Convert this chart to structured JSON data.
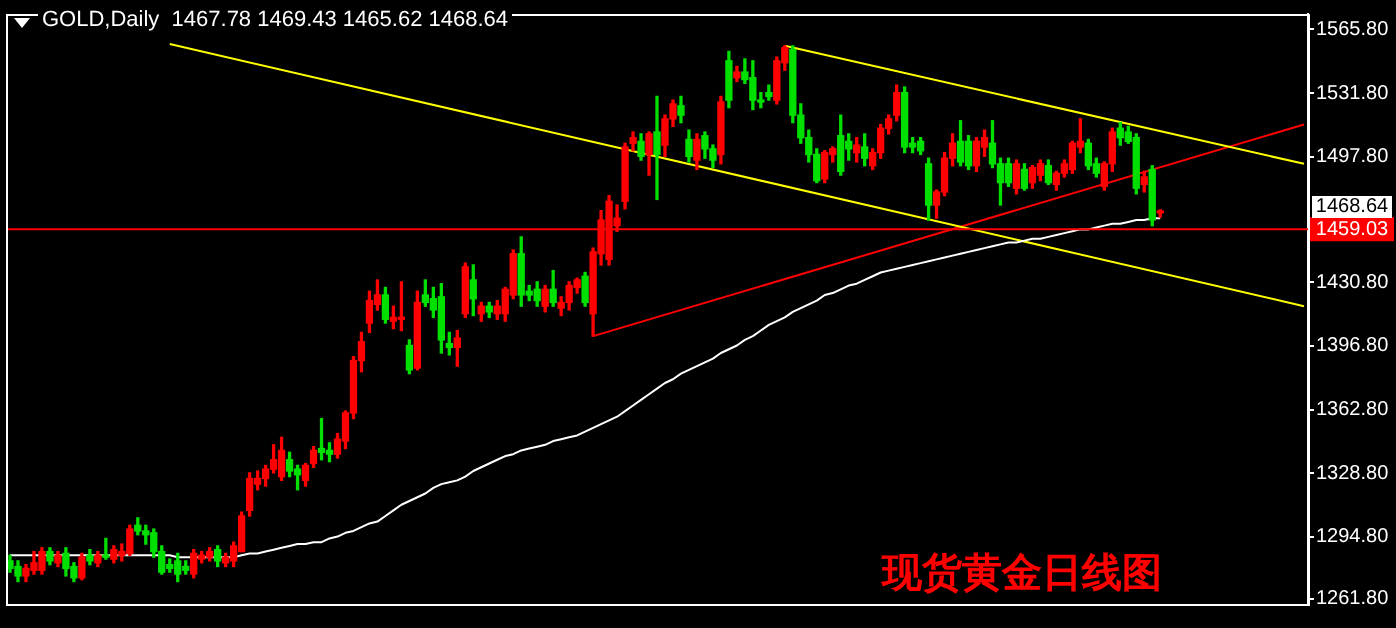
{
  "chart_data": {
    "type": "candlestick",
    "title": "GOLD,Daily  1467.78 1469.43 1465.62 1468.64",
    "categories": [
      null,
      null,
      null,
      null,
      null,
      null,
      null,
      null,
      null,
      null,
      null,
      null,
      null,
      null,
      null,
      null,
      null,
      null,
      null,
      null,
      null,
      null,
      null,
      null,
      null,
      null,
      null,
      null,
      null,
      null,
      null,
      null,
      null,
      null,
      null,
      null,
      null,
      null,
      null,
      null,
      null,
      null,
      null,
      null,
      null,
      null,
      null,
      null,
      null,
      null,
      null,
      null,
      null,
      null,
      null,
      null,
      null,
      null,
      null,
      null,
      null,
      null,
      null,
      null,
      null,
      null,
      null,
      null,
      null,
      null,
      null,
      null,
      null,
      null,
      null,
      null,
      null,
      null,
      null,
      null,
      null,
      null,
      null,
      null,
      null,
      null,
      null,
      null,
      null,
      null,
      null,
      null,
      null,
      null,
      null,
      null,
      null,
      null,
      null,
      null,
      null,
      null,
      null,
      null,
      null,
      null,
      null,
      null,
      null,
      null,
      null,
      null,
      null,
      null,
      null,
      null,
      null,
      null,
      null,
      null,
      null,
      null,
      null,
      null,
      null,
      null,
      null,
      null,
      null,
      null,
      null,
      null,
      null,
      null,
      null,
      null,
      null,
      null,
      null,
      null,
      null,
      null,
      null,
      null,
      null,
      null,
      null,
      null,
      null,
      null,
      null,
      null,
      null,
      null,
      null,
      null,
      null,
      null,
      null,
      null,
      null,
      null,
      null
    ],
    "ohlc": [
      [
        1282,
        1285,
        1276,
        1278
      ],
      [
        1279,
        1282,
        1271,
        1274
      ],
      [
        1274,
        1280,
        1271,
        1278
      ],
      [
        1277,
        1287,
        1275,
        1281
      ],
      [
        1277,
        1289,
        1275,
        1287
      ],
      [
        1287,
        1289,
        1280,
        1282
      ],
      [
        1281,
        1287,
        1279,
        1285
      ],
      [
        1286,
        1289,
        1274,
        1278
      ],
      [
        1279,
        1281,
        1271,
        1273
      ],
      [
        1273,
        1286,
        1272,
        1284
      ],
      [
        1285,
        1288,
        1280,
        1282
      ],
      [
        1281,
        1287,
        1279,
        1285
      ],
      [
        1284,
        1294,
        1283,
        1285
      ],
      [
        1283,
        1290,
        1281,
        1288
      ],
      [
        1285,
        1291,
        1282,
        1287
      ],
      [
        1286,
        1301,
        1285,
        1299
      ],
      [
        1301,
        1305,
        1296,
        1298
      ],
      [
        1298,
        1301,
        1291,
        1296
      ],
      [
        1297,
        1299,
        1284,
        1287
      ],
      [
        1287,
        1290,
        1275,
        1276
      ],
      [
        1280,
        1283,
        1276,
        1278
      ],
      [
        1282,
        1286,
        1271,
        1275
      ],
      [
        1279,
        1282,
        1275,
        1277
      ],
      [
        1275,
        1288,
        1273,
        1286
      ],
      [
        1283,
        1287,
        1281,
        1285
      ],
      [
        1284,
        1289,
        1282,
        1287
      ],
      [
        1288,
        1290,
        1279,
        1282
      ],
      [
        1281,
        1286,
        1279,
        1284
      ],
      [
        1282,
        1292,
        1279,
        1290
      ],
      [
        1287,
        1308,
        1287,
        1306
      ],
      [
        1309,
        1329,
        1306,
        1326
      ],
      [
        1323,
        1330,
        1320,
        1326
      ],
      [
        1326,
        1333,
        1322,
        1331
      ],
      [
        1331,
        1344,
        1329,
        1336
      ],
      [
        1327,
        1348,
        1325,
        1341
      ],
      [
        1336,
        1340,
        1327,
        1330
      ],
      [
        1331,
        1333,
        1320,
        1328
      ],
      [
        1325,
        1334,
        1322,
        1333
      ],
      [
        1334,
        1343,
        1332,
        1341
      ],
      [
        1342,
        1358,
        1336,
        1340
      ],
      [
        1341,
        1345,
        1335,
        1339
      ],
      [
        1339,
        1350,
        1337,
        1347
      ],
      [
        1346,
        1362,
        1342,
        1361
      ],
      [
        1361,
        1391,
        1358,
        1389
      ],
      [
        1389,
        1404,
        1383,
        1399
      ],
      [
        1409,
        1426,
        1404,
        1421
      ],
      [
        1419,
        1432,
        1416,
        1424
      ],
      [
        1424,
        1428,
        1409,
        1411
      ],
      [
        1410,
        1418,
        1406,
        1412
      ],
      [
        1411,
        1431,
        1405,
        1412
      ],
      [
        1397,
        1400,
        1382,
        1384
      ],
      [
        1385,
        1426,
        1384,
        1420
      ],
      [
        1424,
        1432,
        1418,
        1420
      ],
      [
        1422,
        1428,
        1412,
        1416
      ],
      [
        1423,
        1430,
        1393,
        1400
      ],
      [
        1398,
        1404,
        1392,
        1396
      ],
      [
        1396,
        1405,
        1386,
        1401
      ],
      [
        1414,
        1441,
        1412,
        1439
      ],
      [
        1432,
        1440,
        1413,
        1422
      ],
      [
        1414,
        1420,
        1410,
        1418
      ],
      [
        1418,
        1420,
        1412,
        1415
      ],
      [
        1414,
        1421,
        1411,
        1418
      ],
      [
        1414,
        1428,
        1410,
        1427
      ],
      [
        1424,
        1448,
        1422,
        1446
      ],
      [
        1446,
        1455,
        1418,
        1424
      ],
      [
        1426,
        1429,
        1421,
        1424
      ],
      [
        1427,
        1431,
        1418,
        1421
      ],
      [
        1418,
        1429,
        1415,
        1427
      ],
      [
        1427,
        1437,
        1418,
        1420
      ],
      [
        1417,
        1423,
        1413,
        1420
      ],
      [
        1420,
        1431,
        1416,
        1429
      ],
      [
        1428,
        1433,
        1425,
        1432
      ],
      [
        1434,
        1436,
        1418,
        1420
      ],
      [
        1414,
        1449,
        1402,
        1447
      ],
      [
        1446,
        1469,
        1440,
        1464
      ],
      [
        1443,
        1477,
        1440,
        1474
      ],
      [
        1461,
        1472,
        1458,
        1465
      ],
      [
        1474,
        1505,
        1470,
        1503
      ],
      [
        1505,
        1511,
        1501,
        1508
      ],
      [
        1506,
        1510,
        1496,
        1498
      ],
      [
        1499,
        1511,
        1488,
        1510
      ],
      [
        1511,
        1530,
        1475,
        1499
      ],
      [
        1504,
        1520,
        1498,
        1518
      ],
      [
        1518,
        1528,
        1514,
        1526
      ],
      [
        1525,
        1530,
        1516,
        1520
      ],
      [
        1507,
        1512,
        1495,
        1498
      ],
      [
        1496,
        1510,
        1491,
        1507
      ],
      [
        1509,
        1511,
        1497,
        1502
      ],
      [
        1502,
        1504,
        1492,
        1496
      ],
      [
        1499,
        1530,
        1494,
        1527
      ],
      [
        1549,
        1554,
        1524,
        1528
      ],
      [
        1540,
        1546,
        1538,
        1543
      ],
      [
        1543,
        1550,
        1537,
        1539
      ],
      [
        1540,
        1549,
        1523,
        1528
      ],
      [
        1528,
        1532,
        1524,
        1527
      ],
      [
        1532,
        1536,
        1528,
        1530
      ],
      [
        1528,
        1551,
        1526,
        1549
      ],
      [
        1548,
        1557,
        1544,
        1556
      ],
      [
        1555,
        1557,
        1516,
        1520
      ],
      [
        1520,
        1526,
        1505,
        1508
      ],
      [
        1508,
        1512,
        1495,
        1499
      ],
      [
        1499,
        1502,
        1484,
        1485
      ],
      [
        1486,
        1501,
        1484,
        1500
      ],
      [
        1499,
        1503,
        1495,
        1502
      ],
      [
        1509,
        1520,
        1488,
        1490
      ],
      [
        1506,
        1510,
        1496,
        1502
      ],
      [
        1500,
        1508,
        1495,
        1504
      ],
      [
        1503,
        1510,
        1493,
        1497
      ],
      [
        1493,
        1502,
        1491,
        1500
      ],
      [
        1500,
        1515,
        1497,
        1513
      ],
      [
        1513,
        1520,
        1510,
        1518
      ],
      [
        1520,
        1536,
        1517,
        1532
      ],
      [
        1532,
        1535,
        1500,
        1503
      ],
      [
        1505,
        1508,
        1500,
        1503
      ],
      [
        1506,
        1508,
        1499,
        1501
      ],
      [
        1494,
        1497,
        1464,
        1472
      ],
      [
        1472,
        1480,
        1465,
        1479
      ],
      [
        1479,
        1500,
        1477,
        1497
      ],
      [
        1497,
        1510,
        1493,
        1505
      ],
      [
        1506,
        1517,
        1493,
        1495
      ],
      [
        1506,
        1509,
        1491,
        1493
      ],
      [
        1493,
        1508,
        1490,
        1506
      ],
      [
        1503,
        1512,
        1498,
        1508
      ],
      [
        1505,
        1517,
        1492,
        1494
      ],
      [
        1494,
        1497,
        1472,
        1484
      ],
      [
        1494,
        1497,
        1482,
        1484
      ],
      [
        1481,
        1496,
        1478,
        1494
      ],
      [
        1491,
        1494,
        1480,
        1481
      ],
      [
        1484,
        1493,
        1481,
        1492
      ],
      [
        1488,
        1496,
        1485,
        1494
      ],
      [
        1493,
        1496,
        1483,
        1484
      ],
      [
        1483,
        1490,
        1480,
        1489
      ],
      [
        1489,
        1496,
        1487,
        1494
      ],
      [
        1491,
        1506,
        1489,
        1505
      ],
      [
        1503,
        1518,
        1500,
        1506
      ],
      [
        1505,
        1507,
        1491,
        1493
      ],
      [
        1494,
        1497,
        1487,
        1489
      ],
      [
        1482,
        1495,
        1480,
        1494
      ],
      [
        1494,
        1513,
        1490,
        1511
      ],
      [
        1513,
        1516,
        1504,
        1508
      ],
      [
        1511,
        1514,
        1505,
        1506
      ],
      [
        1508,
        1510,
        1478,
        1481
      ],
      [
        1483,
        1490,
        1479,
        1487
      ],
      [
        1491,
        1493,
        1461,
        1464
      ],
      [
        1467.78,
        1469.43,
        1465.62,
        1468.64
      ],
      null,
      null,
      null,
      null,
      null,
      null,
      null,
      null,
      null,
      null,
      null,
      null,
      null,
      null,
      null,
      null,
      null,
      null
    ],
    "colors": [
      "#00e000",
      "#00e000",
      "#ff0000",
      "#ff0000",
      "#ff0000",
      "#00e000",
      "#ff0000",
      "#00e000",
      "#00e000",
      "#ff0000",
      "#00e000",
      "#ff0000",
      "#00e000",
      "#ff0000",
      "#ff0000",
      "#ff0000",
      "#00e000",
      "#00e000",
      "#00e000",
      "#00e000",
      "#00e000",
      "#00e000",
      "#00e000",
      "#ff0000",
      "#ff0000",
      "#ff0000",
      "#00e000",
      "#ff0000",
      "#ff0000",
      "#ff0000",
      "#ff0000",
      "#ff0000",
      "#ff0000",
      "#ff0000",
      "#ff0000",
      "#00e000",
      "#00e000",
      "#ff0000",
      "#ff0000",
      "#00e000",
      "#00e000",
      "#ff0000",
      "#ff0000",
      "#ff0000",
      "#ff0000",
      "#ff0000",
      "#ff0000",
      "#00e000",
      "#ff0000",
      "#ff0000",
      "#00e000",
      "#ff0000",
      "#00e000",
      "#00e000",
      "#00e000",
      "#00e000",
      "#ff0000",
      "#ff0000",
      "#00e000",
      "#ff0000",
      "#00e000",
      "#ff0000",
      "#ff0000",
      "#ff0000",
      "#00e000",
      "#00e000",
      "#00e000",
      "#ff0000",
      "#00e000",
      "#ff0000",
      "#ff0000",
      "#ff0000",
      "#00e000",
      "#ff0000",
      "#ff0000",
      "#ff0000",
      "#ff0000",
      "#ff0000",
      "#ff0000",
      "#00e000",
      "#ff0000",
      "#00e000",
      "#ff0000",
      "#ff0000",
      "#00e000",
      "#00e000",
      "#ff0000",
      "#00e000",
      "#00e000",
      "#ff0000",
      "#00e000",
      "#ff0000",
      "#00e000",
      "#00e000",
      "#00e000",
      "#00e000",
      "#ff0000",
      "#ff0000",
      "#00e000",
      "#00e000",
      "#00e000",
      "#00e000",
      "#ff0000",
      "#ff0000",
      "#00e000",
      "#00e000",
      "#ff0000",
      "#00e000",
      "#ff0000",
      "#ff0000",
      "#ff0000",
      "#ff0000",
      "#00e000",
      "#00e000",
      "#00e000",
      "#00e000",
      "#ff0000",
      "#ff0000",
      "#ff0000",
      "#00e000",
      "#00e000",
      "#ff0000",
      "#ff0000",
      "#00e000",
      "#00e000",
      "#00e000",
      "#ff0000",
      "#00e000",
      "#ff0000",
      "#ff0000",
      "#00e000",
      "#ff0000",
      "#ff0000",
      "#ff0000",
      "#ff0000",
      "#00e000",
      "#00e000",
      "#ff0000",
      "#ff0000",
      "#00e000",
      "#00e000",
      "#00e000",
      "#ff0000",
      "#00e000",
      "#ff0000",
      null,
      null,
      null,
      null,
      null,
      null,
      null,
      null,
      null,
      null,
      null,
      null,
      null,
      null,
      null,
      null,
      null,
      null
    ],
    "series": [
      {
        "type": "line",
        "color": "#ffffff",
        "values": [
          1285,
          1285,
          1285,
          1285,
          1285,
          1285,
          1285,
          1285,
          1285,
          1285,
          1285,
          1285,
          1285,
          1285,
          1285,
          1285,
          1285,
          1285,
          1285,
          1285,
          1285,
          1284,
          1284,
          1284,
          1284,
          1284,
          1284,
          1284,
          1284,
          1285,
          1286,
          1286,
          1287,
          1288,
          1289,
          1290,
          1291,
          1291,
          1292,
          1292,
          1294,
          1295,
          1297,
          1298,
          1300,
          1302,
          1303,
          1306,
          1309,
          1312,
          1314,
          1316,
          1318,
          1321,
          1323,
          1324,
          1325,
          1327,
          1330,
          1332,
          1334,
          1336,
          1338,
          1339,
          1341,
          1342,
          1343,
          1344,
          1346,
          1347,
          1348,
          1349,
          1351,
          1353,
          1355,
          1357,
          1359,
          1362,
          1365,
          1368,
          1371,
          1374,
          1377,
          1379,
          1382,
          1384,
          1386,
          1388,
          1390,
          1393,
          1395,
          1397,
          1400,
          1402,
          1405,
          1408,
          1410,
          1412,
          1415,
          1417,
          1419,
          1421,
          1424,
          1425,
          1427,
          1429,
          1430,
          1432,
          1434,
          1436,
          1437,
          1438,
          1439,
          1440,
          1441,
          1442,
          1443,
          1444,
          1445,
          1446,
          1447,
          1448,
          1449,
          1450,
          1451,
          1452,
          1452,
          1453,
          1454,
          1454,
          1455,
          1456,
          1457,
          1458,
          1459,
          1459,
          1460,
          1461,
          1462,
          1462,
          1463,
          1464,
          1464,
          1465,
          1465,
          null,
          null,
          null,
          null,
          null,
          null,
          null,
          null,
          null,
          null,
          null,
          null,
          null,
          null,
          null,
          null,
          null,
          null
        ]
      },
      {
        "type": "line",
        "color": "#ffff00",
        "values": [
          null,
          null,
          null,
          null,
          null,
          null,
          null,
          null,
          null,
          null,
          null,
          null,
          null,
          null,
          null,
          null,
          null,
          null,
          null,
          null,
          null,
          null,
          null,
          null,
          null,
          null,
          null,
          null,
          null,
          null,
          null,
          null,
          null,
          null,
          null,
          null,
          null,
          null,
          null,
          null,
          null,
          null,
          null,
          null,
          null,
          null,
          null,
          null,
          null,
          null,
          null,
          null,
          null,
          null,
          null,
          null,
          null,
          null,
          null,
          null,
          null,
          null,
          null,
          null,
          null,
          null,
          null,
          null,
          null,
          null,
          null,
          null,
          null,
          null,
          null,
          null,
          null,
          null,
          null,
          null,
          null,
          null,
          null,
          null,
          null,
          null,
          null,
          null,
          null,
          null,
          null,
          null,
          null,
          null,
          null,
          null,
          null,
          1557,
          null,
          null,
          null,
          null,
          null,
          null,
          null,
          null,
          null,
          null,
          null,
          null,
          null,
          null,
          null,
          null,
          null,
          null,
          null,
          null,
          null,
          null,
          null,
          null,
          null,
          null,
          null,
          null,
          null,
          null,
          null,
          null,
          null,
          null,
          null,
          null,
          null,
          null,
          null,
          null,
          null,
          null,
          null,
          null,
          null,
          null,
          null,
          null,
          null,
          null,
          null,
          null,
          null,
          null,
          null,
          null,
          null,
          null,
          null,
          null,
          null,
          null,
          null,
          null,
          1494
        ]
      },
      {
        "type": "line",
        "color": "#ffff00",
        "values": [
          null,
          null,
          null,
          null,
          null,
          null,
          null,
          null,
          null,
          null,
          null,
          null,
          null,
          null,
          null,
          null,
          null,
          null,
          null,
          null,
          1558,
          null,
          null,
          null,
          null,
          null,
          null,
          null,
          null,
          null,
          null,
          null,
          null,
          null,
          null,
          null,
          null,
          null,
          null,
          null,
          null,
          null,
          null,
          null,
          null,
          null,
          null,
          null,
          null,
          null,
          null,
          null,
          null,
          null,
          null,
          null,
          null,
          null,
          null,
          null,
          null,
          null,
          null,
          null,
          null,
          null,
          null,
          null,
          null,
          null,
          null,
          null,
          null,
          null,
          null,
          null,
          null,
          null,
          null,
          null,
          null,
          null,
          null,
          null,
          null,
          null,
          null,
          null,
          null,
          null,
          null,
          null,
          null,
          null,
          null,
          null,
          null,
          null,
          null,
          null,
          null,
          null,
          null,
          null,
          null,
          null,
          null,
          null,
          null,
          null,
          null,
          null,
          null,
          null,
          null,
          null,
          null,
          null,
          null,
          null,
          null,
          null,
          null,
          null,
          null,
          null,
          null,
          null,
          null,
          null,
          null,
          null,
          null,
          null,
          null,
          null,
          null,
          null,
          null,
          null,
          null,
          null,
          null,
          null,
          null,
          null,
          null,
          null,
          null,
          null,
          null,
          null,
          null,
          null,
          null,
          null,
          null,
          null,
          null,
          null,
          null,
          null,
          1418
        ]
      },
      {
        "type": "line",
        "color": "#ff0000",
        "values": [
          null,
          null,
          null,
          null,
          null,
          null,
          null,
          null,
          null,
          null,
          null,
          null,
          null,
          null,
          null,
          null,
          null,
          null,
          null,
          null,
          null,
          null,
          null,
          null,
          null,
          null,
          null,
          null,
          null,
          null,
          null,
          null,
          null,
          null,
          null,
          null,
          null,
          null,
          null,
          null,
          null,
          null,
          null,
          null,
          null,
          null,
          null,
          null,
          null,
          null,
          null,
          null,
          null,
          null,
          null,
          null,
          null,
          null,
          null,
          null,
          null,
          null,
          null,
          null,
          null,
          null,
          null,
          null,
          null,
          null,
          null,
          null,
          null,
          1402,
          null,
          null,
          null,
          null,
          null,
          null,
          null,
          null,
          null,
          null,
          null,
          null,
          null,
          null,
          null,
          null,
          null,
          null,
          null,
          null,
          null,
          null,
          null,
          null,
          null,
          null,
          null,
          null,
          null,
          null,
          null,
          null,
          null,
          null,
          null,
          null,
          null,
          null,
          null,
          null,
          null,
          null,
          null,
          null,
          null,
          null,
          null,
          null,
          null,
          null,
          null,
          null,
          null,
          null,
          null,
          null,
          null,
          null,
          null,
          null,
          null,
          null,
          null,
          null,
          null,
          null,
          null,
          null,
          null,
          null,
          null,
          null,
          null,
          null,
          null,
          null,
          null,
          null,
          null,
          null,
          null,
          null,
          null,
          null,
          null,
          null,
          null,
          null,
          1515
        ]
      }
    ],
    "ylim": [
      1259,
      1574
    ],
    "yticks": [
      {
        "value": 1565.8,
        "label": "1565.80"
      },
      {
        "value": 1531.8,
        "label": "1531.80"
      },
      {
        "value": 1497.8,
        "label": "1497.80"
      },
      {
        "value": 1430.8,
        "label": "1430.80"
      },
      {
        "value": 1396.8,
        "label": "1396.80"
      },
      {
        "value": 1362.8,
        "label": "1362.80"
      },
      {
        "value": 1328.8,
        "label": "1328.80"
      },
      {
        "value": 1294.8,
        "label": "1294.80"
      },
      {
        "value": 1261.8,
        "label": "1261.80"
      }
    ],
    "tick_labels": "y",
    "ref_lines": [
      {
        "axis": "y",
        "value": 1459.03,
        "label": "1459.03",
        "color": "#ff0000"
      }
    ],
    "annotations": [
      "1468.64",
      "现货黄金日线图"
    ]
  }
}
